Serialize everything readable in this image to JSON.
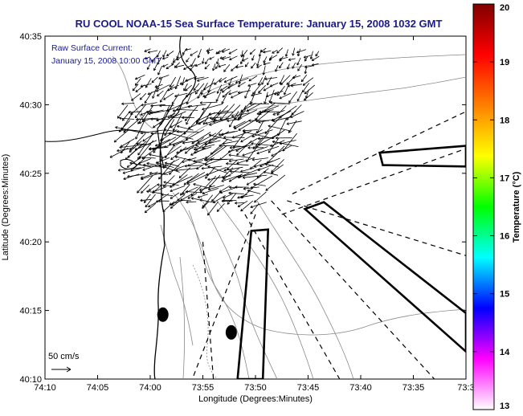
{
  "chart_data": {
    "type": "map-plot",
    "title": "RU COOL  NOAA-15  Sea Surface Temperature:  January 15, 2008 1032 GMT",
    "annotation_lines": [
      "Raw Surface Current:",
      "January 15, 2008 10:00 GMT"
    ],
    "xlabel": "Longitude (Degrees:Minutes)",
    "ylabel": "Latitude (Degrees:Minutes)",
    "x_ticks": [
      "74:10",
      "74:05",
      "74:00",
      "73:55",
      "73:50",
      "73:45",
      "73:40",
      "73:35",
      "73:3"
    ],
    "y_ticks": [
      "40:10",
      "40:15",
      "40:20",
      "40:25",
      "40:30",
      "40:35"
    ],
    "xlim_minutes_west": [
      70,
      30
    ],
    "ylim_minutes_north": [
      10,
      35
    ],
    "colorbar": {
      "label": "Temperature (°C)",
      "ticks": [
        "13",
        "14",
        "15",
        "16",
        "17",
        "18",
        "19",
        "20"
      ],
      "range": [
        13,
        20
      ],
      "colors": [
        "#ffffff",
        "#ff00ff",
        "#0000ff",
        "#00ffff",
        "#00ff00",
        "#ffff00",
        "#ff8000",
        "#ff0000",
        "#800000"
      ]
    },
    "scale_label": "50 cm/s",
    "scale_speed_cm_s": 50,
    "current_vector_field": {
      "units": "cm/s",
      "center": {
        "lon_min_w": 52,
        "lat_min": 26
      },
      "rows": [
        {
          "lat_min": 33.5,
          "lon_range_min_w": [
            60,
            44
          ],
          "mean_speed": 20,
          "mean_dir_deg": 225
        },
        {
          "lat_min": 31.5,
          "lon_range_min_w": [
            61,
            44
          ],
          "mean_speed": 30,
          "mean_dir_deg": 230
        },
        {
          "lat_min": 29.5,
          "lon_range_min_w": [
            62,
            45
          ],
          "mean_speed": 45,
          "mean_dir_deg": 240
        },
        {
          "lat_min": 27.5,
          "lon_range_min_w": [
            62,
            46
          ],
          "mean_speed": 55,
          "mean_dir_deg": 250
        },
        {
          "lat_min": 25.5,
          "lon_range_min_w": [
            61,
            47
          ],
          "mean_speed": 50,
          "mean_dir_deg": 255
        },
        {
          "lat_min": 23.5,
          "lon_range_min_w": [
            60,
            49
          ],
          "mean_speed": 35,
          "mean_dir_deg": 250
        }
      ]
    },
    "spots": [
      {
        "lon_min_w": 58.8,
        "lat_min": 14.7
      },
      {
        "lon_min_w": 52.3,
        "lat_min": 13.4
      }
    ],
    "boxes": [
      {
        "corners": [
          [
            51.7,
            10.0
          ],
          [
            50.4,
            20.8
          ],
          [
            48.8,
            20.9
          ],
          [
            49.3,
            10.0
          ]
        ]
      },
      {
        "corners": [
          [
            38.2,
            26.5
          ],
          [
            30.0,
            27.0
          ],
          [
            30.0,
            25.5
          ],
          [
            37.9,
            25.6
          ]
        ]
      },
      {
        "corners": [
          [
            43.5,
            22.9
          ],
          [
            30.0,
            14.8
          ],
          [
            30.0,
            12.0
          ],
          [
            45.3,
            22.4
          ]
        ]
      }
    ],
    "dashed_rays": [
      {
        "from": [
          46.5,
          23.5
        ],
        "to": [
          30.0,
          29.5
        ]
      },
      {
        "from": [
          47.5,
          22.0
        ],
        "to": [
          30.0,
          26.8
        ]
      },
      {
        "from": [
          47.0,
          23.0
        ],
        "to": [
          30.0,
          19.0
        ]
      },
      {
        "from": [
          48.5,
          23.0
        ],
        "to": [
          33.0,
          10.0
        ]
      },
      {
        "from": [
          51.0,
          22.0
        ],
        "to": [
          42.0,
          10.0
        ]
      },
      {
        "from": [
          55.0,
          20.0
        ],
        "to": [
          54.0,
          10.0
        ]
      },
      {
        "from": [
          50.0,
          22.0
        ],
        "to": [
          56.0,
          10.0
        ]
      }
    ]
  }
}
